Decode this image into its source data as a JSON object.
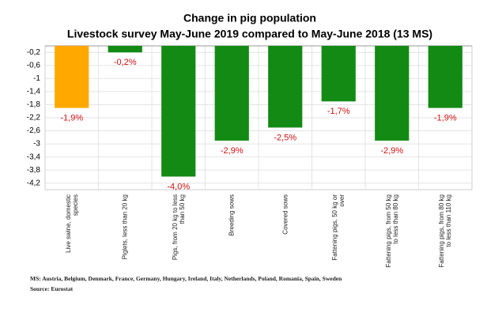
{
  "chart_data": {
    "type": "bar",
    "title": "Change in pig population",
    "subtitle": "Livestock survey May-June 2019 compared to May-June 2018 (13 MS)",
    "categories": [
      "Live swine, domestic species",
      "Piglets, less than 20 kg",
      "Pigs, from 20 kg to less than 50 kg",
      "Breeding sows",
      "Covered sows",
      "Fattening pigs, 50 kg or over",
      "Fattening pigs, from 50 kg to less than 80 kg",
      "Fattening pigs, from 80 kg to less than 110 kg"
    ],
    "values": [
      -1.9,
      -0.2,
      -4.0,
      -2.9,
      -2.5,
      -1.7,
      -2.9,
      -1.9
    ],
    "value_labels": [
      "-1,9%",
      "-0,2%",
      "-4,0%",
      "-2,9%",
      "-2,5%",
      "-1,7%",
      "-2,9%",
      "-1,9%"
    ],
    "colors": [
      "#ffa800",
      "#138a13",
      "#138a13",
      "#138a13",
      "#138a13",
      "#138a13",
      "#138a13",
      "#138a13"
    ],
    "ylim": [
      -4.4,
      0
    ],
    "yticks": [
      {
        "value": -0.2,
        "label": "-0,2"
      },
      {
        "value": -0.6,
        "label": "-0,6"
      },
      -1,
      {
        "value": -1.4,
        "label": "-1,4"
      },
      {
        "value": -1.8,
        "label": "-1,8"
      },
      {
        "value": -2.2,
        "label": "-2,2"
      },
      {
        "value": -2.6,
        "label": "-2,6"
      },
      -3,
      {
        "value": -3.4,
        "label": "-3,4"
      },
      {
        "value": -3.8,
        "label": "-3,8"
      },
      {
        "value": -4.2,
        "label": "-4,2"
      }
    ],
    "grid": true,
    "notes": [
      "MS: Austria, Belgium, Denmark, France, Germany, Hungary, Ireland, Italy, Netherlands, Poland, Romania, Spain, Sweden",
      "Source: Eurostat"
    ]
  }
}
